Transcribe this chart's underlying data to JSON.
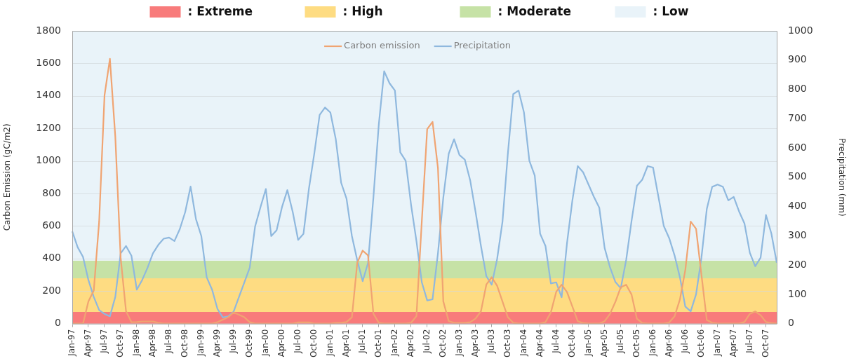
{
  "chart_data": {
    "type": "line",
    "categories": [
      "Jan-97",
      null,
      null,
      "Apr-97",
      null,
      null,
      "Jul-97",
      null,
      null,
      "Oct-97",
      null,
      null,
      "Jan-98",
      null,
      null,
      "Apr-98",
      null,
      null,
      "Jul-98",
      null,
      null,
      "Oct-98",
      null,
      null,
      "Jan-99",
      null,
      null,
      "Apr-99",
      null,
      null,
      "Jul-99",
      null,
      null,
      "Oct-99",
      null,
      null,
      "Jan-00",
      null,
      null,
      "Apr-00",
      null,
      null,
      "Jul-00",
      null,
      null,
      "Oct-00",
      null,
      null,
      "Jan-01",
      null,
      null,
      "Apr-01",
      null,
      null,
      "Jul-01",
      null,
      null,
      "Oct-01",
      null,
      null,
      "Jan-02",
      null,
      null,
      "Apr-02",
      null,
      null,
      "Jul-02",
      null,
      null,
      "Oct-02",
      null,
      null,
      "Jan-03",
      null,
      null,
      "Apr-03",
      null,
      null,
      "Jul-03",
      null,
      null,
      "Oct-03",
      null,
      null,
      "Jan-04",
      null,
      null,
      "Apr-04",
      null,
      null,
      "Jul-04",
      null,
      null,
      "Oct-04",
      null,
      null,
      "Jan-05",
      null,
      null,
      "Apr-05",
      null,
      null,
      "Jul-05",
      null,
      null,
      "Oct-05",
      null,
      null,
      "Jan-06",
      null,
      null,
      "Apr-06",
      null,
      null,
      "Jul-06",
      null,
      null,
      "Oct-06",
      null,
      null,
      "Jan-07",
      null,
      null,
      "Apr-07",
      null,
      null,
      "Jul-07",
      null,
      null,
      "Oct-07",
      null,
      null
    ],
    "series": [
      {
        "name": "Carbon emission",
        "color": "#f0a472",
        "values": [
          0,
          0,
          0,
          136,
          203,
          628,
          1404,
          1628,
          1151,
          404,
          76,
          9,
          10,
          13,
          13,
          13,
          5,
          0,
          0,
          0,
          0,
          0,
          0,
          0,
          0,
          0,
          0,
          9,
          24,
          39,
          69,
          54,
          39,
          9,
          0,
          0,
          0,
          0,
          0,
          0,
          0,
          0,
          8,
          8,
          8,
          0,
          0,
          0,
          0,
          5,
          5,
          10,
          39,
          375,
          449,
          419,
          61,
          5,
          0,
          0,
          0,
          0,
          0,
          5,
          46,
          630,
          1196,
          1240,
          957,
          136,
          16,
          5,
          5,
          5,
          9,
          31,
          76,
          240,
          285,
          233,
          136,
          39,
          5,
          0,
          0,
          0,
          0,
          0,
          9,
          69,
          196,
          239,
          194,
          105,
          15,
          3,
          0,
          0,
          0,
          15,
          60,
          134,
          224,
          239,
          179,
          30,
          3,
          0,
          0,
          0,
          0,
          7,
          45,
          149,
          329,
          627,
          583,
          300,
          22,
          5,
          0,
          0,
          0,
          0,
          0,
          10,
          60,
          75,
          52,
          10,
          3,
          0
        ]
      },
      {
        "name": "Precipitation",
        "color": "#8fb8de",
        "axis": "y2",
        "values": [
          315,
          261,
          228,
          149,
          91,
          46,
          33,
          25,
          91,
          240,
          265,
          232,
          116,
          149,
          191,
          240,
          269,
          290,
          294,
          282,
          323,
          381,
          468,
          357,
          299,
          158,
          116,
          50,
          21,
          25,
          41,
          91,
          141,
          191,
          332,
          398,
          460,
          299,
          319,
          398,
          456,
          381,
          286,
          307,
          460,
          580,
          713,
          738,
          721,
          630,
          481,
          427,
          299,
          216,
          145,
          207,
          431,
          680,
          862,
          821,
          796,
          585,
          556,
          406,
          282,
          141,
          79,
          83,
          240,
          431,
          580,
          630,
          576,
          560,
          489,
          381,
          265,
          162,
          133,
          220,
          348,
          580,
          784,
          796,
          721,
          556,
          506,
          307,
          265,
          137,
          141,
          90,
          275,
          421,
          538,
          517,
          475,
          433,
          396,
          258,
          192,
          142,
          121,
          217,
          350,
          471,
          492,
          538,
          533,
          433,
          333,
          292,
          233,
          158,
          58,
          42,
          100,
          225,
          392,
          467,
          475,
          467,
          421,
          433,
          383,
          342,
          242,
          196,
          225,
          371,
          308,
          208
        ]
      }
    ],
    "ylabel": "Carbon Emission (gC/m2)",
    "y2label": "Precipitation (mm)",
    "ylim": [
      0,
      1800
    ],
    "yticks": [
      0,
      200,
      400,
      600,
      800,
      1000,
      1200,
      1400,
      1600,
      1800
    ],
    "y2lim": [
      0,
      1000
    ],
    "y2ticks": [
      0,
      100,
      200,
      300,
      400,
      500,
      600,
      700,
      800,
      900,
      1000
    ],
    "bands": [
      {
        "axis": "y2",
        "from": 0,
        "to": 40,
        "label": ": Extreme",
        "color": "#f87b7b"
      },
      {
        "axis": "y2",
        "from": 40,
        "to": 155,
        "label": ": High",
        "color": "#fedc82"
      },
      {
        "axis": "y2",
        "from": 155,
        "to": 215,
        "label": ": Moderate",
        "color": "#c6e2a6"
      },
      {
        "axis": "y2",
        "from": 215,
        "to": 1000,
        "label": ": Low",
        "color": "#e9f3f9"
      }
    ],
    "grid": "y",
    "legend": "top",
    "marker": "none",
    "line_style": "solid"
  }
}
